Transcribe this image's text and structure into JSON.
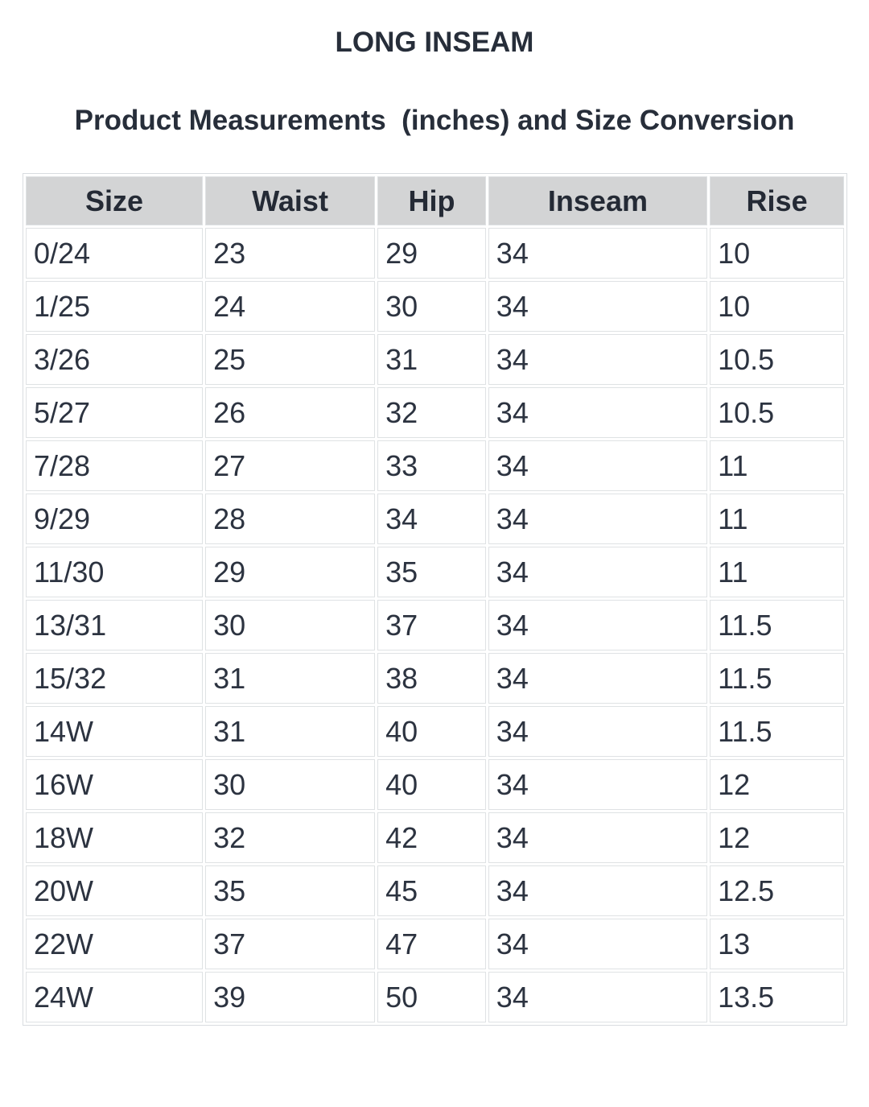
{
  "page": {
    "title": "LONG INSEAM",
    "subtitle": "Product Measurements  (inches) and Size Conversion"
  },
  "chart_data": {
    "type": "table",
    "title": "LONG INSEAM",
    "subtitle": "Product Measurements (inches) and Size Conversion",
    "units": "inches",
    "columns": [
      "Size",
      "Waist",
      "Hip",
      "Inseam",
      "Rise"
    ],
    "rows": [
      [
        "0/24",
        "23",
        "29",
        "34",
        "10"
      ],
      [
        "1/25",
        "24",
        "30",
        "34",
        "10"
      ],
      [
        "3/26",
        "25",
        "31",
        "34",
        "10.5"
      ],
      [
        "5/27",
        "26",
        "32",
        "34",
        "10.5"
      ],
      [
        "7/28",
        "27",
        "33",
        "34",
        "11"
      ],
      [
        "9/29",
        "28",
        "34",
        "34",
        "11"
      ],
      [
        "11/30",
        "29",
        "35",
        "34",
        "11"
      ],
      [
        "13/31",
        "30",
        "37",
        "34",
        "11.5"
      ],
      [
        "15/32",
        "31",
        "38",
        "34",
        "11.5"
      ],
      [
        "14W",
        "31",
        "40",
        "34",
        "11.5"
      ],
      [
        "16W",
        "30",
        "40",
        "34",
        "12"
      ],
      [
        "18W",
        "32",
        "42",
        "34",
        "12"
      ],
      [
        "20W",
        "35",
        "45",
        "34",
        "12.5"
      ],
      [
        "22W",
        "37",
        "47",
        "34",
        "13"
      ],
      [
        "24W",
        "39",
        "50",
        "34",
        "13.5"
      ]
    ]
  },
  "colors": {
    "header_bg": "#d3d4d5",
    "cell_border": "#dfe2e4",
    "text": "#2c3340",
    "background": "#ffffff"
  }
}
